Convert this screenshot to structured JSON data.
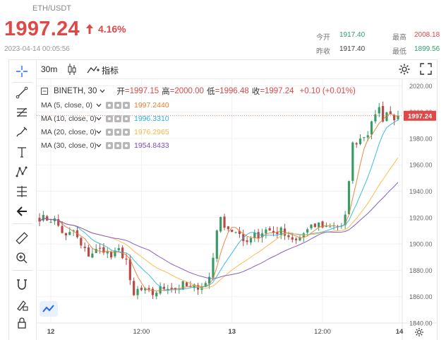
{
  "header": {
    "pair": "ETH/USDT",
    "price": "1997.24",
    "change_pct": "4.16%",
    "timestamp": "2023-04-14 00:05:56",
    "stats": {
      "open_label": "今开",
      "open_value": "1917.40",
      "high_label": "最高",
      "high_value": "2008.18",
      "prev_close_label": "昨收",
      "prev_close_value": "1917.40",
      "low_label": "最低",
      "low_value": "1899.56"
    }
  },
  "toolbar": {
    "interval": "30m",
    "indicators_label": "指标",
    "tools": [
      "crosshair-icon",
      "trend-line-icon",
      "fib-icon",
      "brush-icon",
      "text-icon",
      "pattern-icon",
      "prediction-icon",
      "back-arrow-icon",
      "ruler-icon",
      "zoom-in-icon",
      "magnet-icon",
      "lock-drawing-icon",
      "lock-icon",
      "trash-icon"
    ]
  },
  "legend": {
    "symbol": "BINETH, 30",
    "open_k": "开",
    "open_v": "=1997.15",
    "high_k": "高",
    "high_v": "=2000.00",
    "low_k": "低",
    "low_v": "=1996.48",
    "close_k": "收",
    "close_v": "=1997.24",
    "change": "+0.10 (+0.01%)",
    "ma": [
      {
        "label": "MA (5, close, 0)",
        "value": "1997.2440",
        "color": "#f07a2e"
      },
      {
        "label": "MA (10, close, 0)",
        "value": "1996.3310",
        "color": "#29b5d8"
      },
      {
        "label": "MA (20, close, 0)",
        "value": "1976.2965",
        "color": "#f5b642"
      },
      {
        "label": "MA (30, close, 0)",
        "value": "1954.8433",
        "color": "#7a4fbf"
      }
    ]
  },
  "colors": {
    "up": "#3a9b64",
    "down": "#b84a4a",
    "price_red": "#e04747"
  },
  "chart_data": {
    "type": "candlestick",
    "x_ticks": [
      "12",
      "12:00",
      "13",
      "12:00",
      "14"
    ],
    "ylim": [
      1840,
      2025
    ],
    "y_ticks": [
      "2020.00",
      "2000.00",
      "1980.00",
      "1960.00",
      "1940.00",
      "1920.00",
      "1900.00",
      "1880.00",
      "1860.00",
      "1840.00"
    ],
    "last_price_label": "1997.24",
    "series": [
      {
        "name": "MA (5, close, 0)",
        "color": "#f07a2e"
      },
      {
        "name": "MA (10, close, 0)",
        "color": "#29b5d8"
      },
      {
        "name": "MA (20, close, 0)",
        "color": "#f5b642"
      },
      {
        "name": "MA (30, close, 0)",
        "color": "#7a4fbf"
      }
    ],
    "anchors": [
      [
        0,
        1920
      ],
      [
        4,
        1918
      ],
      [
        7,
        1905
      ],
      [
        9,
        1910
      ],
      [
        11,
        1898
      ],
      [
        13,
        1892
      ],
      [
        15,
        1895
      ],
      [
        17,
        1896
      ],
      [
        19,
        1890
      ],
      [
        21,
        1895
      ],
      [
        23,
        1888
      ],
      [
        24,
        1870
      ],
      [
        25,
        1860
      ],
      [
        26,
        1865
      ],
      [
        28,
        1864
      ],
      [
        30,
        1862
      ],
      [
        32,
        1866
      ],
      [
        34,
        1868
      ],
      [
        36,
        1866
      ],
      [
        38,
        1869
      ],
      [
        40,
        1866
      ],
      [
        42,
        1868
      ],
      [
        44,
        1870
      ],
      [
        45,
        1875
      ],
      [
        46,
        1890
      ],
      [
        47,
        1912
      ],
      [
        48,
        1918
      ],
      [
        50,
        1912
      ],
      [
        52,
        1908
      ],
      [
        54,
        1902
      ],
      [
        56,
        1905
      ],
      [
        57,
        1910
      ],
      [
        58,
        1905
      ],
      [
        60,
        1912
      ],
      [
        62,
        1908
      ],
      [
        64,
        1910
      ],
      [
        66,
        1903
      ],
      [
        68,
        1902
      ],
      [
        70,
        1908
      ],
      [
        72,
        1912
      ],
      [
        74,
        1915
      ],
      [
        76,
        1913
      ],
      [
        78,
        1915
      ],
      [
        80,
        1912
      ],
      [
        81,
        1920
      ],
      [
        82,
        1950
      ],
      [
        83,
        1975
      ],
      [
        84,
        1978
      ],
      [
        86,
        1983
      ],
      [
        87,
        1985
      ],
      [
        88,
        1990
      ],
      [
        89,
        2000
      ],
      [
        90,
        2003
      ],
      [
        91,
        1995
      ],
      [
        92,
        2000
      ],
      [
        93,
        1998
      ],
      [
        94,
        1996
      ],
      [
        95,
        1997.24
      ]
    ]
  }
}
